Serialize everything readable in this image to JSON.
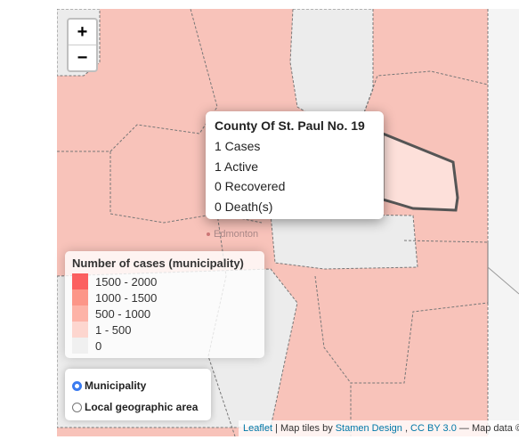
{
  "zoom": {
    "in": "+",
    "out": "−"
  },
  "map_label": "Edmonton",
  "popup": {
    "title": "County Of St. Paul No. 19",
    "lines": [
      "1 Cases",
      "1 Active",
      "0 Recovered",
      "0 Death(s)"
    ]
  },
  "legend": {
    "title": "Number of cases (municipality)",
    "items": [
      {
        "label": "1500 - 2000",
        "color": "#fb4f4f"
      },
      {
        "label": "1000 - 1500",
        "color": "#fc8b7b"
      },
      {
        "label": "500 - 1000",
        "color": "#fdab9d"
      },
      {
        "label": "1 - 500",
        "color": "#fdd2ca"
      },
      {
        "label": "0",
        "color": "#eeeeee"
      }
    ]
  },
  "layers": {
    "options": [
      "Municipality",
      "Local geographic area"
    ],
    "selected": 0
  },
  "attribution": {
    "parts": [
      "Leaflet",
      "| Map tiles by",
      "Stamen Design",
      ",",
      "CC BY 3.0",
      "— Map data ©"
    ]
  }
}
